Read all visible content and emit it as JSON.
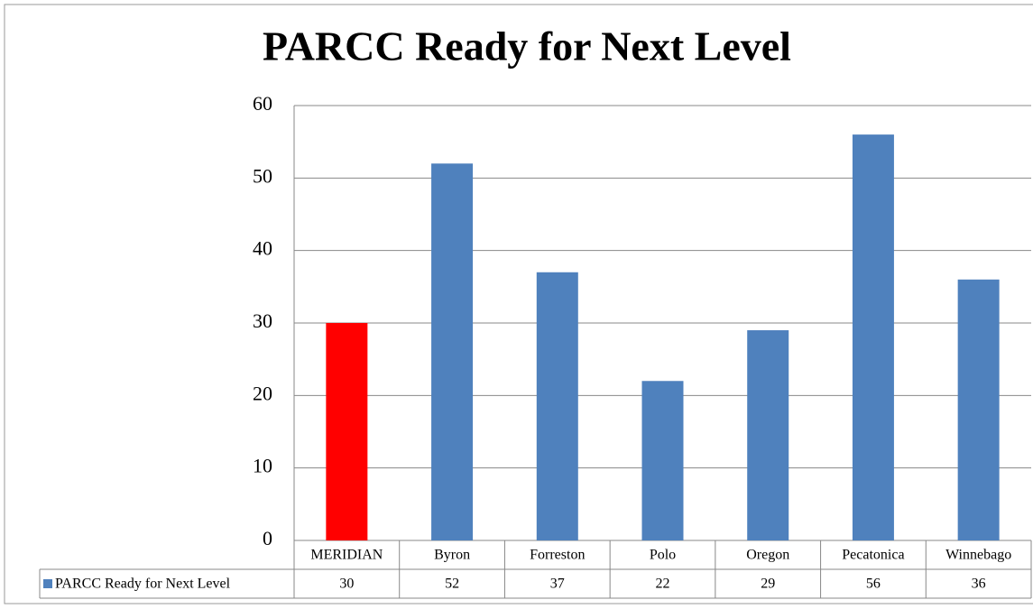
{
  "chart_data": {
    "type": "bar",
    "title": "PARCC Ready for Next Level",
    "categories": [
      "MERIDIAN",
      "Byron",
      "Forreston",
      "Polo",
      "Oregon",
      "Pecatonica",
      "Winnebago"
    ],
    "series": [
      {
        "name": "PARCC Ready for Next Level",
        "color": "#4f81bd",
        "colors": [
          "#ff0000",
          "#4f81bd",
          "#4f81bd",
          "#4f81bd",
          "#4f81bd",
          "#4f81bd",
          "#4f81bd"
        ],
        "values": [
          30,
          52,
          37,
          22,
          29,
          56,
          36
        ]
      }
    ],
    "ylim": [
      0,
      60
    ],
    "yticks": [
      0,
      10,
      20,
      30,
      40,
      50,
      60
    ],
    "grid": true,
    "data_table": true
  }
}
